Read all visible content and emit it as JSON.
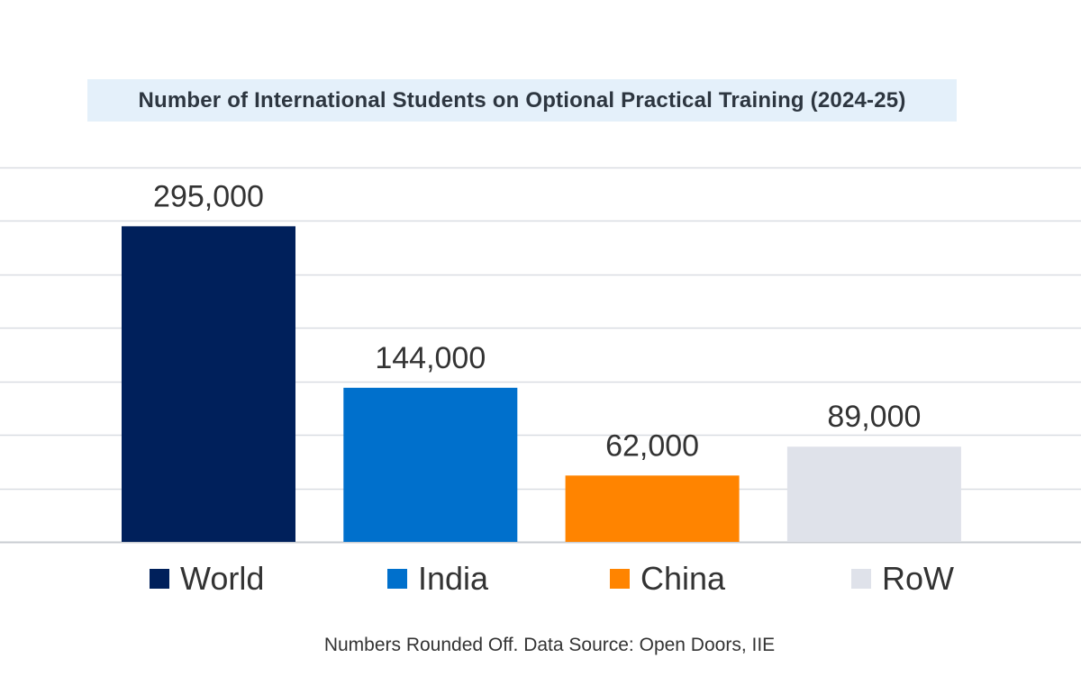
{
  "chart_data": {
    "type": "bar",
    "title": "Number of International Students on Optional Practical Training (2024-25)",
    "categories": [
      "World",
      "India",
      "China",
      "RoW"
    ],
    "values": [
      295000,
      144000,
      62000,
      89000
    ],
    "value_labels": [
      "295,000",
      "144,000",
      "62,000",
      "89,000"
    ],
    "colors": [
      "#00205b",
      "#0070cc",
      "#ff8400",
      "#dfe2ea"
    ],
    "legend_placement": "bottom",
    "grid": true,
    "ylim": [
      0,
      350000
    ],
    "ytick_step": 50000,
    "note": "Numbers Rounded Off. Data Source: Open Doors, IIE"
  }
}
